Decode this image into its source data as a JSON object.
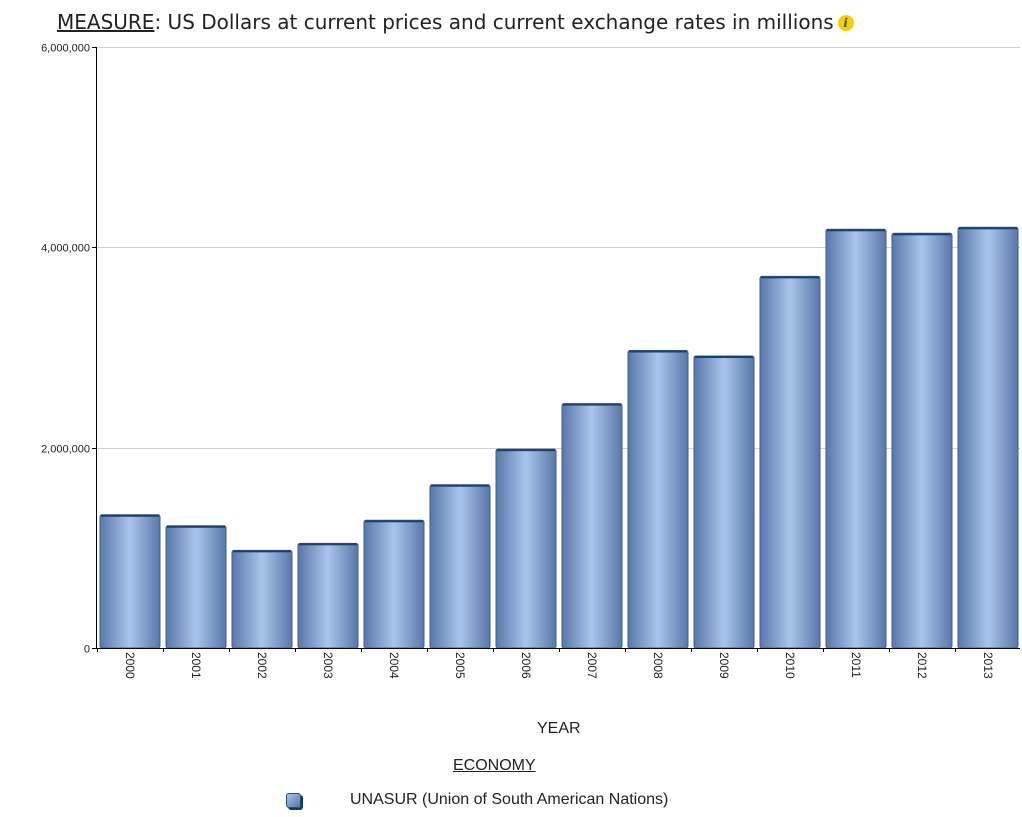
{
  "header": {
    "measure_key": "MEASURE",
    "measure_value": ": US Dollars at current prices and current exchange rates in millions",
    "info_icon": "info-icon",
    "info_glyph": "i"
  },
  "colors": {
    "bar_fill_light": "#a9c5ec",
    "bar_fill_dark": "#5978aa",
    "bar_stroke": "#3f5d8c",
    "grid": "#d0d0d0",
    "axis": "#000000"
  },
  "chart_data": {
    "type": "bar",
    "title": "MEASURE: US Dollars at current prices and current exchange rates in millions",
    "xlabel": "YEAR",
    "ylabel": "",
    "categories": [
      "2000",
      "2001",
      "2002",
      "2003",
      "2004",
      "2005",
      "2006",
      "2007",
      "2008",
      "2009",
      "2010",
      "2011",
      "2012",
      "2013"
    ],
    "series": [
      {
        "name": "UNASUR (Union of South American Nations)",
        "values": [
          1330000,
          1220000,
          975000,
          1045000,
          1275000,
          1630000,
          1985000,
          2440000,
          2970000,
          2915000,
          3710000,
          4180000,
          4140000,
          4200000
        ]
      }
    ],
    "ylim": [
      0,
      6000000
    ],
    "yticks": [
      0,
      2000000,
      4000000,
      6000000
    ],
    "ytick_labels": [
      "0",
      "2,000,000",
      "4,000,000",
      "6,000,000"
    ],
    "grid": true,
    "legend": {
      "title": "ECONOMY",
      "placement": "bottom"
    }
  }
}
